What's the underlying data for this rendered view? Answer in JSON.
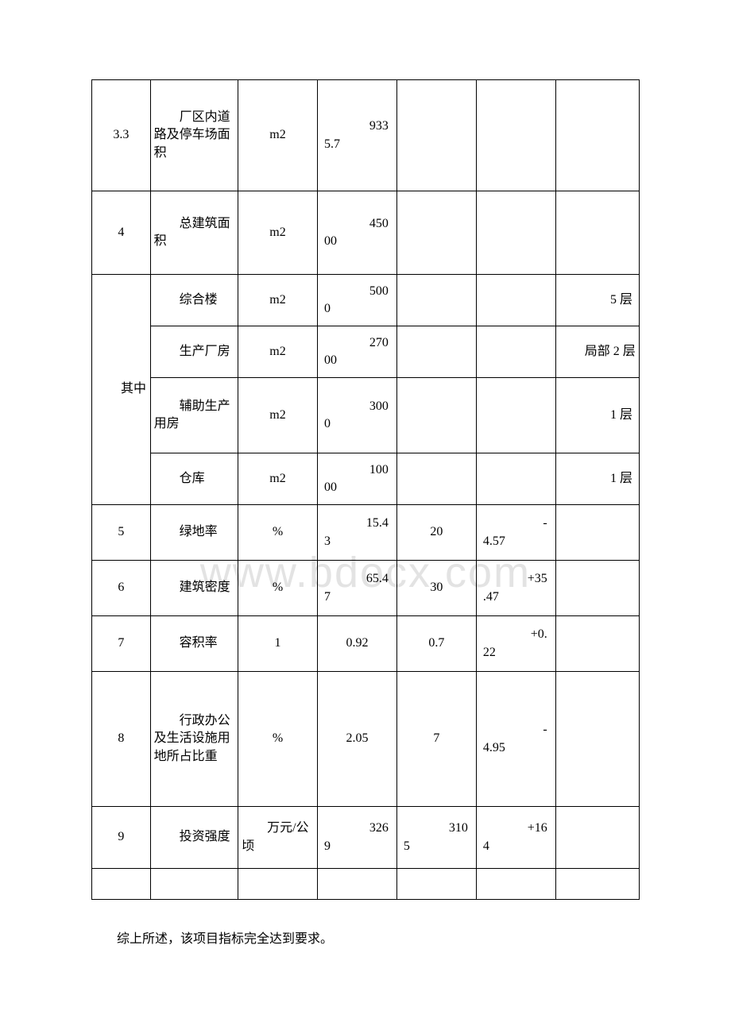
{
  "watermark": "www.bdocx.com",
  "table": {
    "rows": [
      {
        "cls": "row-33",
        "cells": [
          {
            "type": "center",
            "text": "3.3"
          },
          {
            "type": "indent",
            "text": "厂区内道路及停车场面积"
          },
          {
            "type": "center",
            "text": "m2"
          },
          {
            "type": "split",
            "p1": "933",
            "p2": "5.7"
          },
          {
            "type": "empty"
          },
          {
            "type": "empty"
          },
          {
            "type": "empty"
          }
        ]
      },
      {
        "cls": "row-4",
        "cells": [
          {
            "type": "center",
            "text": "4"
          },
          {
            "type": "indent",
            "text": "总建筑面积"
          },
          {
            "type": "center",
            "text": "m2"
          },
          {
            "type": "split",
            "p1": "450",
            "p2": "00"
          },
          {
            "type": "empty"
          },
          {
            "type": "empty"
          },
          {
            "type": "empty"
          }
        ]
      },
      {
        "cls": "row-sub",
        "rowspan_first": 4,
        "first_cell": {
          "type": "indent",
          "text": "其中"
        },
        "cells": [
          {
            "type": "indent",
            "text": "综合楼"
          },
          {
            "type": "center",
            "text": "m2"
          },
          {
            "type": "split",
            "p1": "500",
            "p2": "0"
          },
          {
            "type": "empty"
          },
          {
            "type": "empty"
          },
          {
            "type": "right",
            "text": "5 层"
          }
        ]
      },
      {
        "cls": "row-sub",
        "cells": [
          {
            "type": "indent",
            "text": "生产厂房"
          },
          {
            "type": "center",
            "text": "m2"
          },
          {
            "type": "split",
            "p1": "270",
            "p2": "00"
          },
          {
            "type": "empty"
          },
          {
            "type": "empty"
          },
          {
            "type": "indent",
            "text": "局部 2 层"
          }
        ]
      },
      {
        "cls": "row-sub3",
        "cells": [
          {
            "type": "indent",
            "text": "辅助生产用房"
          },
          {
            "type": "center",
            "text": "m2"
          },
          {
            "type": "split",
            "p1": "300",
            "p2": "0"
          },
          {
            "type": "empty"
          },
          {
            "type": "empty"
          },
          {
            "type": "right",
            "text": "1 层"
          }
        ]
      },
      {
        "cls": "row-sub",
        "cells": [
          {
            "type": "indent",
            "text": "仓库"
          },
          {
            "type": "center",
            "text": "m2"
          },
          {
            "type": "split",
            "p1": "100",
            "p2": "00"
          },
          {
            "type": "empty"
          },
          {
            "type": "empty"
          },
          {
            "type": "right",
            "text": "1 层"
          }
        ]
      },
      {
        "cls": "row-5",
        "cells": [
          {
            "type": "center",
            "text": "5"
          },
          {
            "type": "indent",
            "text": "绿地率"
          },
          {
            "type": "center",
            "text": "%"
          },
          {
            "type": "split",
            "p1": "15.4",
            "p2": "3"
          },
          {
            "type": "center",
            "text": "20"
          },
          {
            "type": "split",
            "p1": "-",
            "p2": "4.57"
          },
          {
            "type": "empty"
          }
        ]
      },
      {
        "cls": "row-6",
        "cells": [
          {
            "type": "center",
            "text": "6"
          },
          {
            "type": "indent",
            "text": "建筑密度"
          },
          {
            "type": "center",
            "text": "%"
          },
          {
            "type": "split",
            "p1": "65.4",
            "p2": "7"
          },
          {
            "type": "center",
            "text": "30"
          },
          {
            "type": "split",
            "p1": "+35",
            "p2": ".47"
          },
          {
            "type": "empty"
          }
        ]
      },
      {
        "cls": "row-7",
        "cells": [
          {
            "type": "center",
            "text": "7"
          },
          {
            "type": "indent",
            "text": "容积率"
          },
          {
            "type": "center",
            "text": "1"
          },
          {
            "type": "center",
            "text": "0.92"
          },
          {
            "type": "center",
            "text": "0.7"
          },
          {
            "type": "split",
            "p1": "+0.",
            "p2": "22"
          },
          {
            "type": "empty"
          }
        ]
      },
      {
        "cls": "row-8",
        "cells": [
          {
            "type": "center",
            "text": "8"
          },
          {
            "type": "indent",
            "text": "行政办公及生活设施用地所占比重"
          },
          {
            "type": "center",
            "text": "%"
          },
          {
            "type": "center",
            "text": "2.05"
          },
          {
            "type": "center",
            "text": "7"
          },
          {
            "type": "split",
            "p1": "-",
            "p2": "4.95"
          },
          {
            "type": "empty"
          }
        ]
      },
      {
        "cls": "row-9",
        "cells": [
          {
            "type": "center",
            "text": "9"
          },
          {
            "type": "indent",
            "text": "投资强度"
          },
          {
            "type": "indent",
            "text": "万元/公顷"
          },
          {
            "type": "split",
            "p1": "326",
            "p2": "9"
          },
          {
            "type": "split",
            "p1": "310",
            "p2": "5"
          },
          {
            "type": "split",
            "p1": "+16",
            "p2": "4"
          },
          {
            "type": "empty"
          }
        ]
      },
      {
        "cls": "empty-row",
        "cells": [
          {
            "type": "empty"
          },
          {
            "type": "empty"
          },
          {
            "type": "empty"
          },
          {
            "type": "empty"
          },
          {
            "type": "empty"
          },
          {
            "type": "empty"
          },
          {
            "type": "empty"
          }
        ]
      }
    ]
  },
  "summary": "综上所述，该项目指标完全达到要求。"
}
